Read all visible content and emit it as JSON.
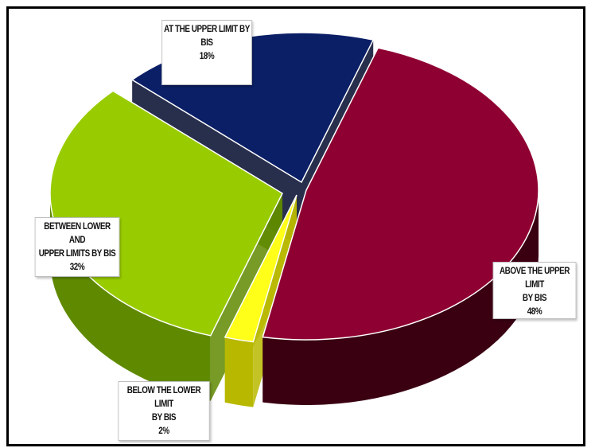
{
  "chart_data": {
    "type": "pie",
    "style": "3d-exploded",
    "slices": [
      {
        "label_line1": "ABOVE THE UPPER LIMIT",
        "label_line2": "BY BIS",
        "percent_label": "48%",
        "value": 48,
        "color": "#8f0032",
        "side_color": "#3a0012"
      },
      {
        "label_line1": "BELOW THE LOWER LIMIT",
        "label_line2": "BY BIS",
        "percent_label": "2%",
        "value": 2,
        "color": "#ffff1a",
        "side_color": "#b8b800"
      },
      {
        "label_line1": "BETWEEN LOWER AND",
        "label_line2": "UPPER LIMITS BY BIS",
        "percent_label": "32%",
        "value": 32,
        "color": "#99cc00",
        "side_color": "#5f8a00"
      },
      {
        "label_line1": "AT THE UPPER LIMIT BY",
        "label_line2": "BIS",
        "percent_label": "18%",
        "value": 18,
        "color": "#0b1f66",
        "side_color": "#020a2e"
      }
    ],
    "legend": "none"
  }
}
